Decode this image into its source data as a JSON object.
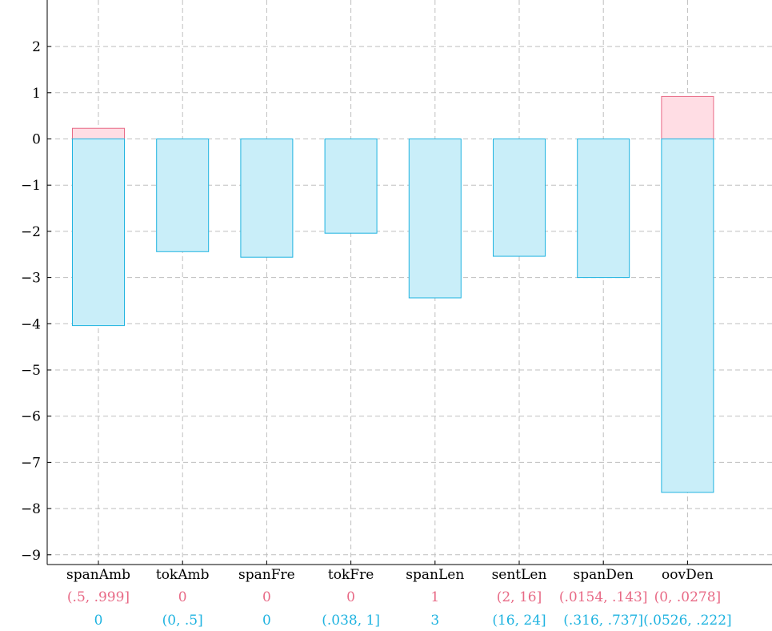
{
  "chart_data": {
    "type": "bar",
    "categories": [
      "spanAmb",
      "tokAmb",
      "spanFre",
      "tokFre",
      "spanLen",
      "sentLen",
      "spanDen",
      "oovDen"
    ],
    "series": [
      {
        "values": [
          0.23,
          0,
          0,
          0,
          0,
          0,
          0,
          0.92
        ],
        "color": "#ffdde4",
        "stroke": "#e86a86"
      },
      {
        "values": [
          -4.04,
          -2.44,
          -2.56,
          -2.04,
          -3.44,
          -2.54,
          -3.0,
          -7.65
        ],
        "color": "#c9eef9",
        "stroke": "#1fb3e0"
      }
    ],
    "bucket_labels_pink": [
      "(.5, .999]",
      "0",
      "0",
      "0",
      "1",
      "(2, 16]",
      "(.0154, .143]",
      "(0, .0278]"
    ],
    "bucket_labels_cyan": [
      "0",
      "(0, .5]",
      "0",
      "(.038, 1]",
      "3",
      "(16, 24]",
      "(.316, .737]",
      "(.0526, .222]"
    ],
    "yticks": [
      2,
      1,
      0,
      -1,
      -2,
      -3,
      -4,
      -5,
      -6,
      -7,
      -8,
      -9
    ],
    "ylim": [
      -9.2,
      2.99
    ],
    "grid": true,
    "colors": {
      "pink_text": "#e86a86",
      "cyan_text": "#1fb3e0"
    }
  }
}
